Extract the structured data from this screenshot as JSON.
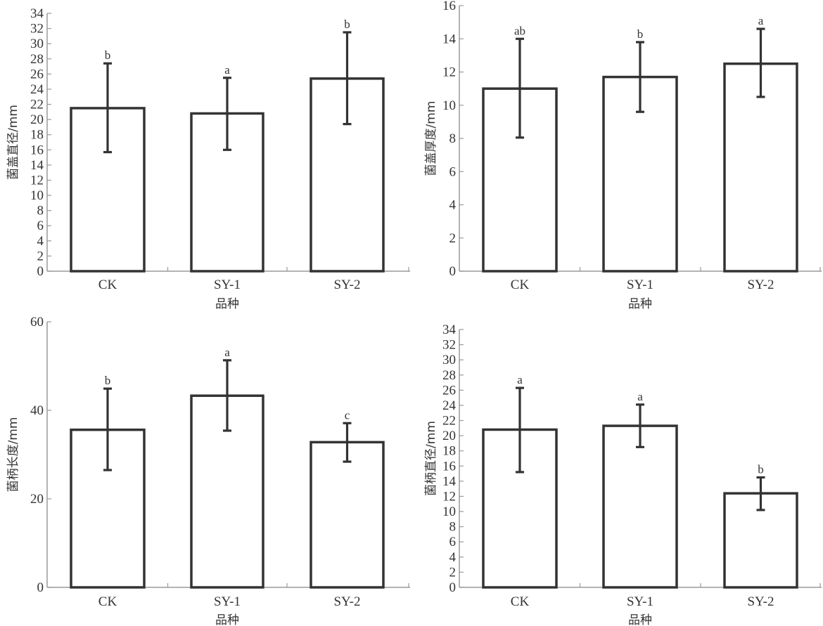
{
  "chart_data": [
    {
      "type": "bar",
      "panel": "top-left",
      "title": "",
      "xlabel": "品种",
      "ylabel": "菌盖直径/mm",
      "categories": [
        "CK",
        "SY-1",
        "SY-2"
      ],
      "values": [
        21.5,
        20.8,
        25.4
      ],
      "error_low": [
        15.7,
        16.0,
        19.4
      ],
      "error_high": [
        27.4,
        25.5,
        31.5
      ],
      "significance": [
        "b",
        "a",
        "b"
      ],
      "ylim": [
        0,
        34
      ],
      "yticks": [
        0,
        2,
        4,
        6,
        8,
        10,
        12,
        14,
        16,
        18,
        20,
        22,
        24,
        26,
        28,
        30,
        32,
        34
      ],
      "grid": false
    },
    {
      "type": "bar",
      "panel": "top-right",
      "title": "",
      "xlabel": "品种",
      "ylabel": "菌盖厚度/mm",
      "categories": [
        "CK",
        "SY-1",
        "SY-2"
      ],
      "values": [
        11.0,
        11.7,
        12.5
      ],
      "error_low": [
        8.05,
        9.6,
        10.5
      ],
      "error_high": [
        14.0,
        13.8,
        14.6
      ],
      "significance": [
        "ab",
        "b",
        "a"
      ],
      "ylim": [
        0,
        16
      ],
      "yticks": [
        0,
        2,
        4,
        6,
        8,
        10,
        12,
        14,
        16
      ],
      "grid": false
    },
    {
      "type": "bar",
      "panel": "bottom-left",
      "title": "",
      "xlabel": "品种",
      "ylabel": "菌柄长度/mm",
      "categories": [
        "CK",
        "SY-1",
        "SY-2"
      ],
      "values": [
        35.6,
        43.3,
        32.8
      ],
      "error_low": [
        26.5,
        35.4,
        28.4
      ],
      "error_high": [
        44.9,
        51.3,
        37.1
      ],
      "significance": [
        "b",
        "a",
        "c"
      ],
      "ylim": [
        0,
        60
      ],
      "yticks": [
        0,
        20,
        40,
        60
      ],
      "grid": false
    },
    {
      "type": "bar",
      "panel": "bottom-right",
      "title": "",
      "xlabel": "品种",
      "ylabel": "菌柄直径/mm",
      "categories": [
        "CK",
        "SY-1",
        "SY-2"
      ],
      "values": [
        20.8,
        21.3,
        12.4
      ],
      "error_low": [
        15.2,
        18.5,
        10.2
      ],
      "error_high": [
        26.3,
        24.1,
        14.5
      ],
      "significance": [
        "a",
        "a",
        "b"
      ],
      "ylim": [
        0,
        34
      ],
      "yticks": [
        0,
        2,
        4,
        6,
        8,
        10,
        12,
        14,
        16,
        18,
        20,
        22,
        24,
        26,
        28,
        30,
        32,
        34
      ],
      "grid": false
    }
  ],
  "colors": {
    "bar_edge": "#333333",
    "bar_fill": "#ffffff",
    "axis": "#9a9a9a",
    "text": "#333333"
  }
}
